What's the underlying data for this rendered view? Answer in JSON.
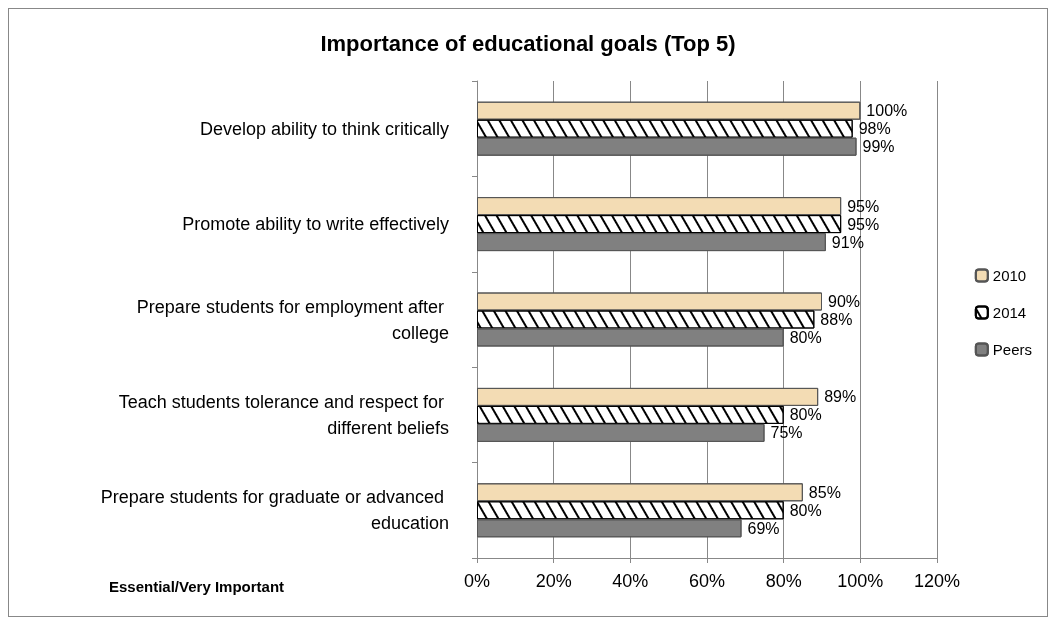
{
  "chart_data": {
    "type": "bar",
    "orientation": "horizontal",
    "title": "Importance of educational goals (Top 5)",
    "categories": [
      "Develop ability to think critically",
      "Promote ability to write effectively",
      "Prepare students for employment after college",
      "Teach students tolerance and respect for different beliefs",
      "Prepare students for graduate or advanced education"
    ],
    "series": [
      {
        "name": "2010",
        "color": "#f3dcb4",
        "values": [
          100,
          95,
          90,
          89,
          85
        ],
        "value_labels": [
          "100%",
          "95%",
          "90%",
          "89%",
          "85%"
        ]
      },
      {
        "name": "2014",
        "color": "#ffffff",
        "values": [
          98,
          95,
          88,
          80,
          80
        ],
        "value_labels": [
          "98%",
          "95%",
          "88%",
          "80%",
          "80%"
        ]
      },
      {
        "name": "Peers",
        "color": "#808080",
        "values": [
          99,
          91,
          80,
          75,
          69
        ],
        "value_labels": [
          "99%",
          "91%",
          "80%",
          "75%",
          "69%"
        ]
      }
    ],
    "xlim": [
      0,
      120
    ],
    "xticks": [
      {
        "value": 0,
        "label": "0%"
      },
      {
        "value": 20,
        "label": "20%"
      },
      {
        "value": 40,
        "label": "40%"
      },
      {
        "value": 60,
        "label": "60%"
      },
      {
        "value": 80,
        "label": "80%"
      },
      {
        "value": 100,
        "label": "100%"
      },
      {
        "value": 120,
        "label": "120%"
      }
    ],
    "grid": "x",
    "legend": "right",
    "annotations": [
      "Essential/Very Important"
    ]
  }
}
